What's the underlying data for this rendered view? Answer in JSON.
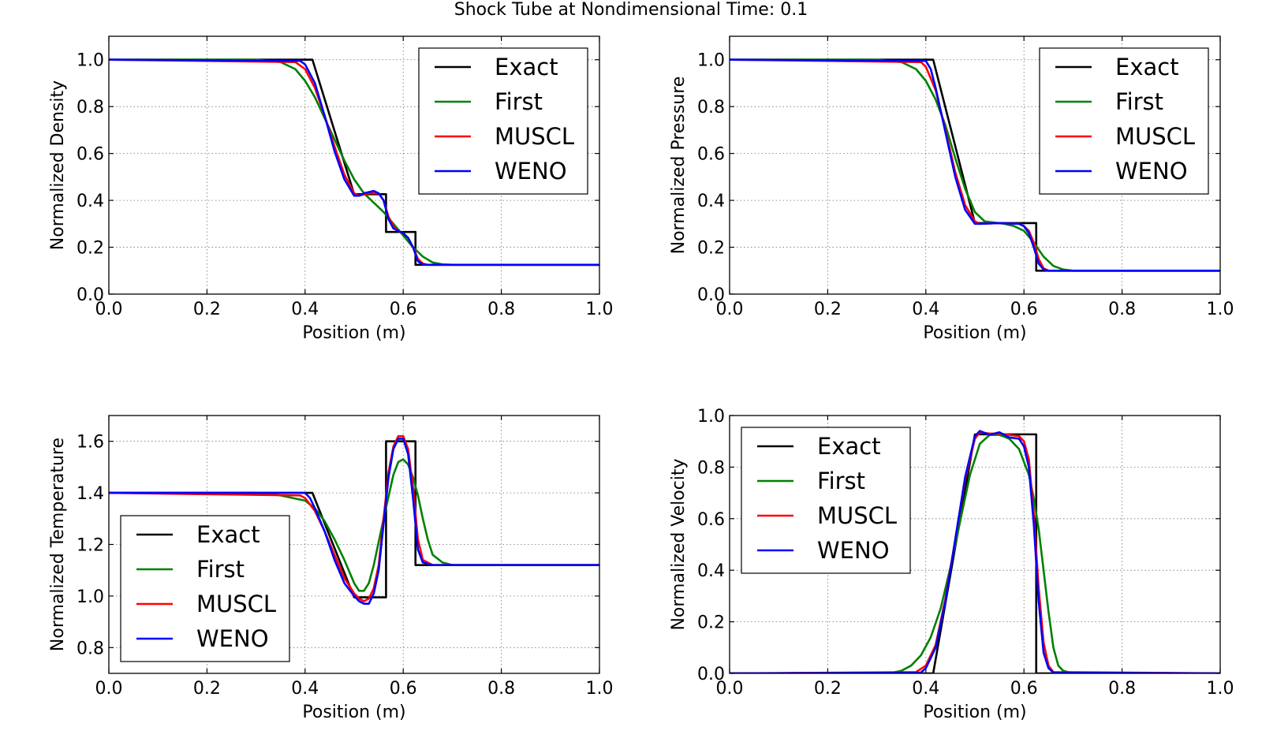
{
  "figure": {
    "suptitle": "Shock Tube at Nondimensional Time: 0.1"
  },
  "series_colors": {
    "Exact": "#000000",
    "First": "#008000",
    "MUSCL": "#ff0000",
    "WENO": "#0000ff"
  },
  "chart_data": [
    {
      "type": "line",
      "xlabel": "Position (m)",
      "ylabel": "Normalized Density",
      "xlim": [
        0,
        1
      ],
      "ylim": [
        0,
        1.1
      ],
      "xticks": [
        "0.0",
        "0.2",
        "0.4",
        "0.6",
        "0.8",
        "1.0"
      ],
      "yticks": [
        "0.0",
        "0.2",
        "0.4",
        "0.6",
        "0.8",
        "1.0"
      ],
      "grid": true,
      "legend": "upper right",
      "series": [
        {
          "name": "Exact",
          "x": [
            0,
            0.415,
            0.5,
            0.565,
            0.565,
            0.625,
            0.625,
            1.0
          ],
          "y": [
            1.0,
            1.0,
            0.426,
            0.426,
            0.265,
            0.265,
            0.125,
            0.125
          ]
        },
        {
          "name": "First",
          "x": [
            0,
            0.3,
            0.35,
            0.38,
            0.4,
            0.42,
            0.44,
            0.46,
            0.48,
            0.5,
            0.52,
            0.54,
            0.56,
            0.58,
            0.6,
            0.62,
            0.64,
            0.66,
            0.68,
            0.7,
            1.0
          ],
          "y": [
            1.0,
            1.0,
            0.99,
            0.96,
            0.91,
            0.84,
            0.75,
            0.66,
            0.57,
            0.49,
            0.43,
            0.39,
            0.35,
            0.3,
            0.25,
            0.2,
            0.16,
            0.135,
            0.127,
            0.125,
            0.125
          ]
        },
        {
          "name": "MUSCL",
          "x": [
            0,
            0.38,
            0.4,
            0.42,
            0.44,
            0.46,
            0.48,
            0.5,
            0.51,
            0.53,
            0.55,
            0.56,
            0.57,
            0.58,
            0.59,
            0.6,
            0.61,
            0.62,
            0.63,
            0.64,
            0.65,
            1.0
          ],
          "y": [
            1.0,
            0.99,
            0.96,
            0.88,
            0.76,
            0.63,
            0.51,
            0.43,
            0.42,
            0.43,
            0.43,
            0.4,
            0.33,
            0.29,
            0.27,
            0.26,
            0.24,
            0.2,
            0.15,
            0.13,
            0.125,
            0.125
          ]
        },
        {
          "name": "WENO",
          "x": [
            0,
            0.39,
            0.4,
            0.42,
            0.44,
            0.46,
            0.48,
            0.5,
            0.51,
            0.52,
            0.54,
            0.55,
            0.56,
            0.57,
            0.58,
            0.59,
            0.6,
            0.61,
            0.62,
            0.63,
            0.64,
            0.65,
            1.0
          ],
          "y": [
            1.0,
            0.995,
            0.98,
            0.9,
            0.76,
            0.61,
            0.49,
            0.42,
            0.42,
            0.43,
            0.44,
            0.43,
            0.4,
            0.32,
            0.28,
            0.27,
            0.26,
            0.24,
            0.2,
            0.14,
            0.127,
            0.125,
            0.125
          ]
        }
      ]
    },
    {
      "type": "line",
      "xlabel": "Position (m)",
      "ylabel": "Normalized Pressure",
      "xlim": [
        0,
        1
      ],
      "ylim": [
        0,
        1.1
      ],
      "xticks": [
        "0.0",
        "0.2",
        "0.4",
        "0.6",
        "0.8",
        "1.0"
      ],
      "yticks": [
        "0.0",
        "0.2",
        "0.4",
        "0.6",
        "0.8",
        "1.0"
      ],
      "grid": true,
      "legend": "upper right",
      "series": [
        {
          "name": "Exact",
          "x": [
            0,
            0.415,
            0.5,
            0.625,
            0.625,
            1.0
          ],
          "y": [
            1.0,
            1.0,
            0.303,
            0.303,
            0.1,
            0.1
          ]
        },
        {
          "name": "First",
          "x": [
            0,
            0.3,
            0.35,
            0.38,
            0.4,
            0.42,
            0.44,
            0.46,
            0.48,
            0.5,
            0.52,
            0.54,
            0.56,
            0.58,
            0.6,
            0.62,
            0.64,
            0.66,
            0.68,
            0.7,
            1.0
          ],
          "y": [
            1.0,
            1.0,
            0.99,
            0.96,
            0.91,
            0.83,
            0.72,
            0.58,
            0.45,
            0.35,
            0.31,
            0.305,
            0.3,
            0.29,
            0.27,
            0.22,
            0.16,
            0.12,
            0.105,
            0.1,
            0.1
          ]
        },
        {
          "name": "MUSCL",
          "x": [
            0,
            0.39,
            0.4,
            0.42,
            0.44,
            0.46,
            0.48,
            0.5,
            0.51,
            0.55,
            0.59,
            0.6,
            0.61,
            0.62,
            0.63,
            0.64,
            0.65,
            1.0
          ],
          "y": [
            1.0,
            0.99,
            0.97,
            0.87,
            0.7,
            0.52,
            0.38,
            0.31,
            0.3,
            0.303,
            0.3,
            0.29,
            0.27,
            0.22,
            0.15,
            0.11,
            0.1,
            0.1
          ]
        },
        {
          "name": "WENO",
          "x": [
            0,
            0.4,
            0.41,
            0.42,
            0.44,
            0.46,
            0.48,
            0.5,
            0.51,
            0.55,
            0.59,
            0.6,
            0.61,
            0.62,
            0.63,
            0.64,
            0.65,
            1.0
          ],
          "y": [
            1.0,
            0.995,
            0.96,
            0.88,
            0.69,
            0.5,
            0.36,
            0.3,
            0.3,
            0.303,
            0.3,
            0.29,
            0.26,
            0.2,
            0.13,
            0.105,
            0.1,
            0.1
          ]
        }
      ]
    },
    {
      "type": "line",
      "xlabel": "Position (m)",
      "ylabel": "Normalized Temperature",
      "xlim": [
        0,
        1
      ],
      "ylim": [
        0.7,
        1.7
      ],
      "xticks": [
        "0.0",
        "0.2",
        "0.4",
        "0.6",
        "0.8",
        "1.0"
      ],
      "yticks": [
        "0.8",
        "1.0",
        "1.2",
        "1.4",
        "1.6"
      ],
      "grid": true,
      "legend": "lower left",
      "series": [
        {
          "name": "Exact",
          "x": [
            0,
            0.415,
            0.5,
            0.565,
            0.565,
            0.625,
            0.625,
            1.0
          ],
          "y": [
            1.4,
            1.4,
            0.995,
            0.995,
            1.6,
            1.6,
            1.12,
            1.12
          ]
        },
        {
          "name": "First",
          "x": [
            0,
            0.3,
            0.35,
            0.4,
            0.42,
            0.44,
            0.46,
            0.48,
            0.5,
            0.51,
            0.52,
            0.53,
            0.54,
            0.56,
            0.58,
            0.59,
            0.6,
            0.61,
            0.62,
            0.63,
            0.64,
            0.65,
            0.66,
            0.68,
            0.7,
            1.0
          ],
          "y": [
            1.4,
            1.4,
            1.39,
            1.37,
            1.34,
            1.29,
            1.22,
            1.14,
            1.05,
            1.02,
            1.02,
            1.05,
            1.12,
            1.3,
            1.47,
            1.52,
            1.53,
            1.51,
            1.46,
            1.39,
            1.3,
            1.22,
            1.16,
            1.13,
            1.12,
            1.12
          ]
        },
        {
          "name": "MUSCL",
          "x": [
            0,
            0.39,
            0.4,
            0.42,
            0.44,
            0.46,
            0.48,
            0.5,
            0.51,
            0.52,
            0.53,
            0.54,
            0.55,
            0.56,
            0.57,
            0.58,
            0.59,
            0.6,
            0.61,
            0.62,
            0.63,
            0.64,
            0.66,
            1.0
          ],
          "y": [
            1.4,
            1.39,
            1.38,
            1.33,
            1.25,
            1.16,
            1.07,
            1.01,
            0.99,
            0.98,
            0.99,
            1.03,
            1.12,
            1.3,
            1.48,
            1.58,
            1.62,
            1.62,
            1.57,
            1.42,
            1.22,
            1.14,
            1.12,
            1.12
          ]
        },
        {
          "name": "WENO",
          "x": [
            0,
            0.4,
            0.41,
            0.42,
            0.44,
            0.46,
            0.48,
            0.5,
            0.51,
            0.52,
            0.53,
            0.54,
            0.55,
            0.56,
            0.57,
            0.58,
            0.59,
            0.6,
            0.61,
            0.62,
            0.63,
            0.64,
            0.66,
            1.0
          ],
          "y": [
            1.4,
            1.4,
            1.38,
            1.34,
            1.25,
            1.14,
            1.05,
            1.0,
            0.98,
            0.97,
            0.97,
            1.01,
            1.1,
            1.28,
            1.46,
            1.57,
            1.61,
            1.61,
            1.55,
            1.38,
            1.18,
            1.13,
            1.12,
            1.12
          ]
        }
      ]
    },
    {
      "type": "line",
      "xlabel": "Position (m)",
      "ylabel": "Normalized Velocity",
      "xlim": [
        0,
        1
      ],
      "ylim": [
        0,
        1.0
      ],
      "xticks": [
        "0.0",
        "0.2",
        "0.4",
        "0.6",
        "0.8",
        "1.0"
      ],
      "yticks": [
        "0.0",
        "0.2",
        "0.4",
        "0.6",
        "0.8",
        "1.0"
      ],
      "grid": true,
      "legend": "upper left",
      "series": [
        {
          "name": "Exact",
          "x": [
            0,
            0.415,
            0.5,
            0.625,
            0.625,
            1.0
          ],
          "y": [
            0,
            0,
            0.927,
            0.927,
            0,
            0
          ]
        },
        {
          "name": "First",
          "x": [
            0,
            0.33,
            0.35,
            0.37,
            0.39,
            0.41,
            0.43,
            0.45,
            0.47,
            0.49,
            0.51,
            0.53,
            0.55,
            0.57,
            0.59,
            0.61,
            0.62,
            0.63,
            0.64,
            0.65,
            0.66,
            0.67,
            0.68,
            0.7,
            1.0
          ],
          "y": [
            0,
            0.002,
            0.01,
            0.03,
            0.07,
            0.14,
            0.25,
            0.41,
            0.59,
            0.77,
            0.89,
            0.925,
            0.925,
            0.91,
            0.87,
            0.77,
            0.68,
            0.56,
            0.4,
            0.24,
            0.1,
            0.03,
            0.01,
            0,
            0
          ]
        },
        {
          "name": "MUSCL",
          "x": [
            0,
            0.38,
            0.4,
            0.42,
            0.44,
            0.46,
            0.48,
            0.5,
            0.51,
            0.53,
            0.55,
            0.57,
            0.59,
            0.6,
            0.61,
            0.62,
            0.63,
            0.64,
            0.65,
            0.66,
            1.0
          ],
          "y": [
            0,
            0.005,
            0.03,
            0.11,
            0.29,
            0.52,
            0.75,
            0.91,
            0.935,
            0.93,
            0.93,
            0.925,
            0.92,
            0.9,
            0.83,
            0.62,
            0.33,
            0.12,
            0.03,
            0.005,
            0
          ]
        },
        {
          "name": "WENO",
          "x": [
            0,
            0.39,
            0.4,
            0.42,
            0.44,
            0.46,
            0.48,
            0.5,
            0.51,
            0.53,
            0.55,
            0.57,
            0.59,
            0.6,
            0.61,
            0.62,
            0.63,
            0.64,
            0.65,
            0.66,
            1.0
          ],
          "y": [
            0,
            0.003,
            0.02,
            0.1,
            0.28,
            0.52,
            0.76,
            0.92,
            0.94,
            0.925,
            0.935,
            0.915,
            0.91,
            0.88,
            0.8,
            0.58,
            0.28,
            0.08,
            0.02,
            0.003,
            0
          ]
        }
      ]
    }
  ]
}
